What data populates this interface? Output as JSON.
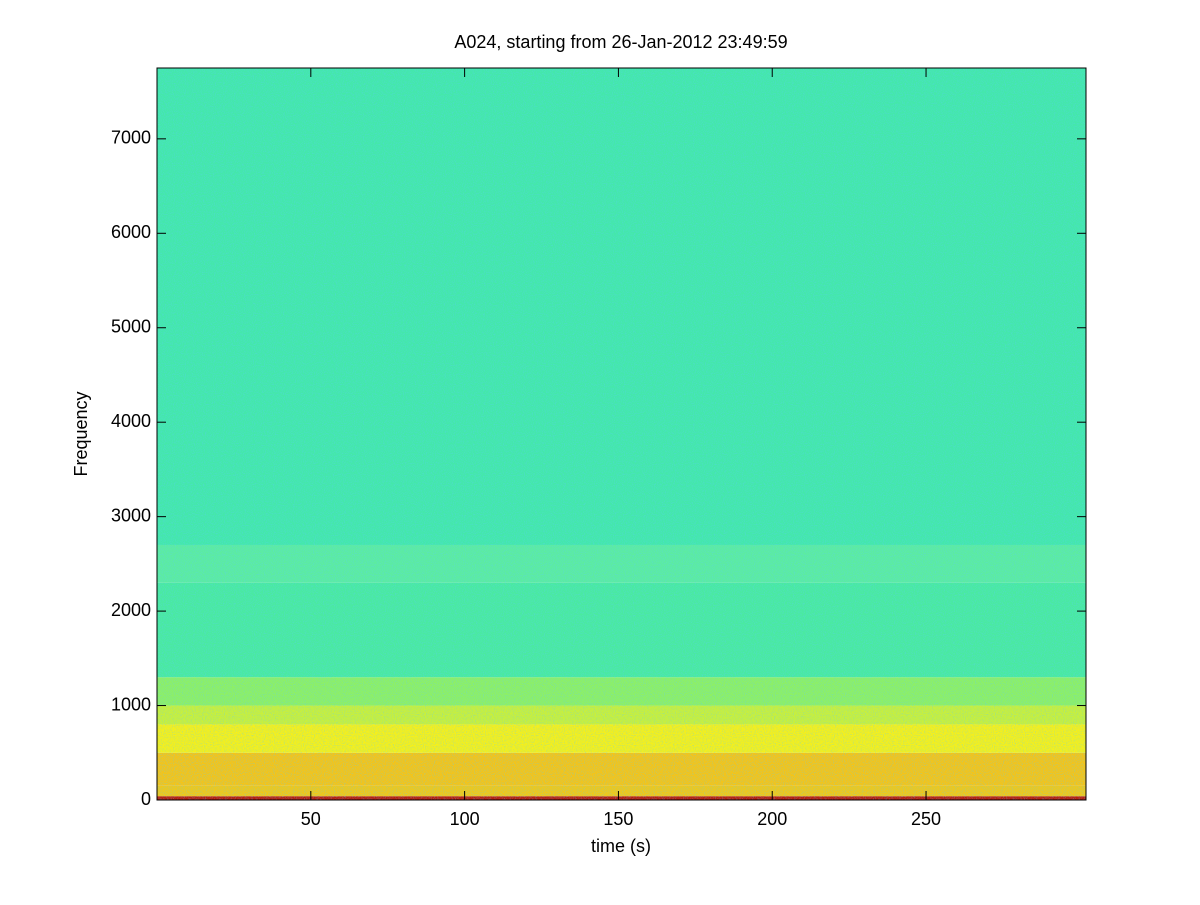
{
  "chart_data": {
    "type": "spectrogram",
    "title": "A024, starting from 26-Jan-2012 23:49:59",
    "x_label": "time (s)",
    "y_label": "Frequency",
    "xlim": [
      0,
      302
    ],
    "ylim": [
      0,
      7750
    ],
    "xticks": [
      50,
      100,
      150,
      200,
      250
    ],
    "yticks": [
      0,
      1000,
      2000,
      3000,
      4000,
      5000,
      6000,
      7000
    ],
    "bands": [
      {
        "from": 0,
        "to": 40,
        "color": "#b81e0c"
      },
      {
        "from": 40,
        "to": 150,
        "color": "#f0c818"
      },
      {
        "from": 150,
        "to": 500,
        "color": "#f5c417"
      },
      {
        "from": 500,
        "to": 800,
        "color": "#f6f019"
      },
      {
        "from": 800,
        "to": 1000,
        "color": "#c9f03a"
      },
      {
        "from": 1000,
        "to": 1300,
        "color": "#8ef064"
      },
      {
        "from": 1300,
        "to": 2300,
        "color": "#4aeaa0"
      },
      {
        "from": 2300,
        "to": 2700,
        "color": "#5cecA0"
      },
      {
        "from": 2700,
        "to": 7750,
        "color": "#44e8aa"
      }
    ]
  }
}
